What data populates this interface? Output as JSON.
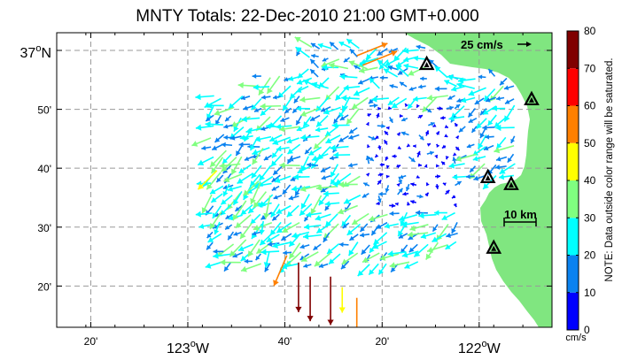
{
  "title": "MNTY Totals: 22-Dec-2010 21:00 GMT+0.000",
  "lat_labels": [
    {
      "text": "37",
      "deg": "o",
      "hem": "N",
      "lat": 37.0
    },
    {
      "text": "50'",
      "lat": 36.8333
    },
    {
      "text": "40'",
      "lat": 36.6667
    },
    {
      "text": "30'",
      "lat": 36.5
    },
    {
      "text": "20'",
      "lat": 36.3333
    }
  ],
  "lon_labels": [
    {
      "text": "20'",
      "lon": -123.333
    },
    {
      "text": "123",
      "deg": "o",
      "hem": "W",
      "lon": -123.0
    },
    {
      "text": "40'",
      "lon": -122.667
    },
    {
      "text": "20'",
      "lon": -122.333
    },
    {
      "text": "122",
      "deg": "o",
      "hem": "W",
      "lon": -122.0
    }
  ],
  "extent": {
    "lon_min": -123.45,
    "lon_max": -121.75,
    "lat_min": 36.2167,
    "lat_max": 37.05
  },
  "scale_arrow": {
    "label": "25 cm/s",
    "speed_cms": 25
  },
  "scale_bar": {
    "label": "10 km",
    "km": 10
  },
  "colorbar": {
    "min": 0,
    "max": 80,
    "ticks": [
      "0",
      "10",
      "20",
      "30",
      "40",
      "50",
      "60",
      "70",
      "80"
    ],
    "unit": "cm/s",
    "note": "NOTE: Data outside color range will be saturated.",
    "colors": [
      "#0000ff",
      "#0a82f0",
      "#00ffff",
      "#80ff80",
      "#ffff00",
      "#ff8000",
      "#ff0000",
      "#800000"
    ]
  },
  "land_color": "#80e680",
  "stations": [
    {
      "lon": -122.18,
      "lat": 36.96
    },
    {
      "lon": -121.82,
      "lat": 36.86
    },
    {
      "lon": -121.97,
      "lat": 36.64
    },
    {
      "lon": -121.89,
      "lat": 36.62
    },
    {
      "lon": -121.95,
      "lat": 36.44
    }
  ],
  "chart_data": {
    "type": "vector-field",
    "title": "MNTY Totals: 22-Dec-2010 21:00 GMT+0.000",
    "value_unit": "cm/s",
    "color_range": [
      0,
      80
    ],
    "vectors_description": "Surface current vectors over Monterey Bay; speeds mostly 0-35 cm/s, a few 50-80 cm/s in the southwest",
    "notable_vectors": [
      {
        "lon": -122.62,
        "lat": 36.4,
        "speed": 78,
        "dir": "S"
      },
      {
        "lon": -122.51,
        "lat": 36.36,
        "speed": 76,
        "dir": "S"
      },
      {
        "lon": -122.58,
        "lat": 36.36,
        "speed": 70,
        "dir": "S"
      },
      {
        "lon": -122.42,
        "lat": 36.3,
        "speed": 55,
        "dir": "S"
      },
      {
        "lon": -122.66,
        "lat": 36.42,
        "speed": 52,
        "dir": "SSW"
      },
      {
        "lon": -122.42,
        "lat": 36.985,
        "speed": 52,
        "dir": "ENE"
      },
      {
        "lon": -122.4,
        "lat": 36.958,
        "speed": 58,
        "dir": "ENE"
      },
      {
        "lon": -122.9,
        "lat": 36.66,
        "speed": 42,
        "dir": "SW"
      },
      {
        "lon": -122.47,
        "lat": 36.33,
        "speed": 40,
        "dir": "S"
      }
    ]
  }
}
